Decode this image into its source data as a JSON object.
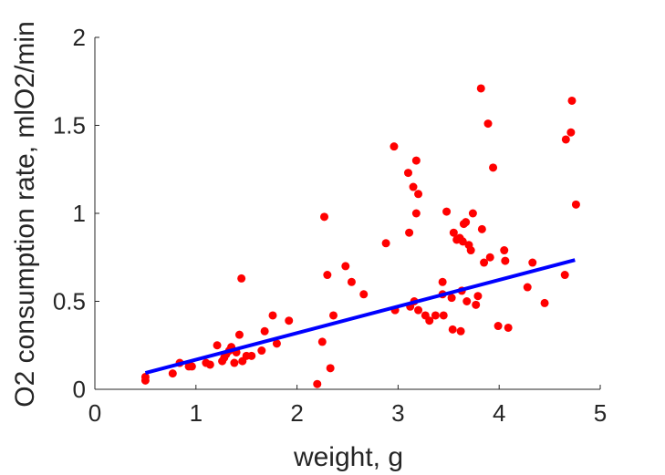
{
  "chart_data": {
    "type": "scatter",
    "xlabel": "weight, g",
    "ylabel": "O2 consumption rate, mlO2/min",
    "xlim": [
      0,
      5
    ],
    "ylim": [
      0,
      2
    ],
    "xticks": [
      "0",
      "1",
      "2",
      "3",
      "4",
      "5"
    ],
    "yticks": [
      "0",
      "0.5",
      "1",
      "1.5",
      "2"
    ],
    "grid": false,
    "colors": {
      "points": "#ff0000",
      "fit": "#0000ff",
      "axis": "#262626"
    },
    "points": [
      [
        0.5,
        0.07
      ],
      [
        0.5,
        0.05
      ],
      [
        0.77,
        0.09
      ],
      [
        0.84,
        0.15
      ],
      [
        0.93,
        0.13
      ],
      [
        0.96,
        0.13
      ],
      [
        1.1,
        0.15
      ],
      [
        1.14,
        0.14
      ],
      [
        1.21,
        0.25
      ],
      [
        1.26,
        0.16
      ],
      [
        1.28,
        0.18
      ],
      [
        1.3,
        0.2
      ],
      [
        1.33,
        0.22
      ],
      [
        1.35,
        0.24
      ],
      [
        1.38,
        0.15
      ],
      [
        1.4,
        0.21
      ],
      [
        1.43,
        0.31
      ],
      [
        1.45,
        0.63
      ],
      [
        1.46,
        0.16
      ],
      [
        1.5,
        0.19
      ],
      [
        1.55,
        0.19
      ],
      [
        1.65,
        0.22
      ],
      [
        1.68,
        0.33
      ],
      [
        1.76,
        0.42
      ],
      [
        1.8,
        0.26
      ],
      [
        1.92,
        0.39
      ],
      [
        2.2,
        0.03
      ],
      [
        2.25,
        0.27
      ],
      [
        2.27,
        0.98
      ],
      [
        2.3,
        0.65
      ],
      [
        2.33,
        0.12
      ],
      [
        2.36,
        0.42
      ],
      [
        2.48,
        0.7
      ],
      [
        2.54,
        0.61
      ],
      [
        2.66,
        0.54
      ],
      [
        2.88,
        0.83
      ],
      [
        2.96,
        1.38
      ],
      [
        2.97,
        0.45
      ],
      [
        3.1,
        1.23
      ],
      [
        3.11,
        0.89
      ],
      [
        3.12,
        0.47
      ],
      [
        3.15,
        1.15
      ],
      [
        3.16,
        0.5
      ],
      [
        3.18,
        1.0
      ],
      [
        3.18,
        1.3
      ],
      [
        3.2,
        1.11
      ],
      [
        3.2,
        0.45
      ],
      [
        3.27,
        0.42
      ],
      [
        3.31,
        0.39
      ],
      [
        3.37,
        0.42
      ],
      [
        3.44,
        0.61
      ],
      [
        3.44,
        0.54
      ],
      [
        3.45,
        0.42
      ],
      [
        3.48,
        1.01
      ],
      [
        3.53,
        0.52
      ],
      [
        3.54,
        0.34
      ],
      [
        3.55,
        0.89
      ],
      [
        3.58,
        0.85
      ],
      [
        3.61,
        0.86
      ],
      [
        3.62,
        0.33
      ],
      [
        3.63,
        0.56
      ],
      [
        3.64,
        0.84
      ],
      [
        3.65,
        0.94
      ],
      [
        3.67,
        0.95
      ],
      [
        3.68,
        0.5
      ],
      [
        3.7,
        0.82
      ],
      [
        3.72,
        0.79
      ],
      [
        3.74,
        1.0
      ],
      [
        3.77,
        0.48
      ],
      [
        3.79,
        0.53
      ],
      [
        3.82,
        1.71
      ],
      [
        3.83,
        0.91
      ],
      [
        3.85,
        0.72
      ],
      [
        3.89,
        1.51
      ],
      [
        3.91,
        0.75
      ],
      [
        3.94,
        1.26
      ],
      [
        3.99,
        0.36
      ],
      [
        4.05,
        0.79
      ],
      [
        4.06,
        0.73
      ],
      [
        4.09,
        0.35
      ],
      [
        4.28,
        0.58
      ],
      [
        4.33,
        0.72
      ],
      [
        4.45,
        0.49
      ],
      [
        4.65,
        0.65
      ],
      [
        4.66,
        1.42
      ],
      [
        4.71,
        1.46
      ],
      [
        4.72,
        1.64
      ],
      [
        4.76,
        1.05
      ]
    ],
    "fit_line": {
      "x": [
        0.5,
        4.75
      ],
      "y": [
        0.093,
        0.735
      ]
    }
  }
}
